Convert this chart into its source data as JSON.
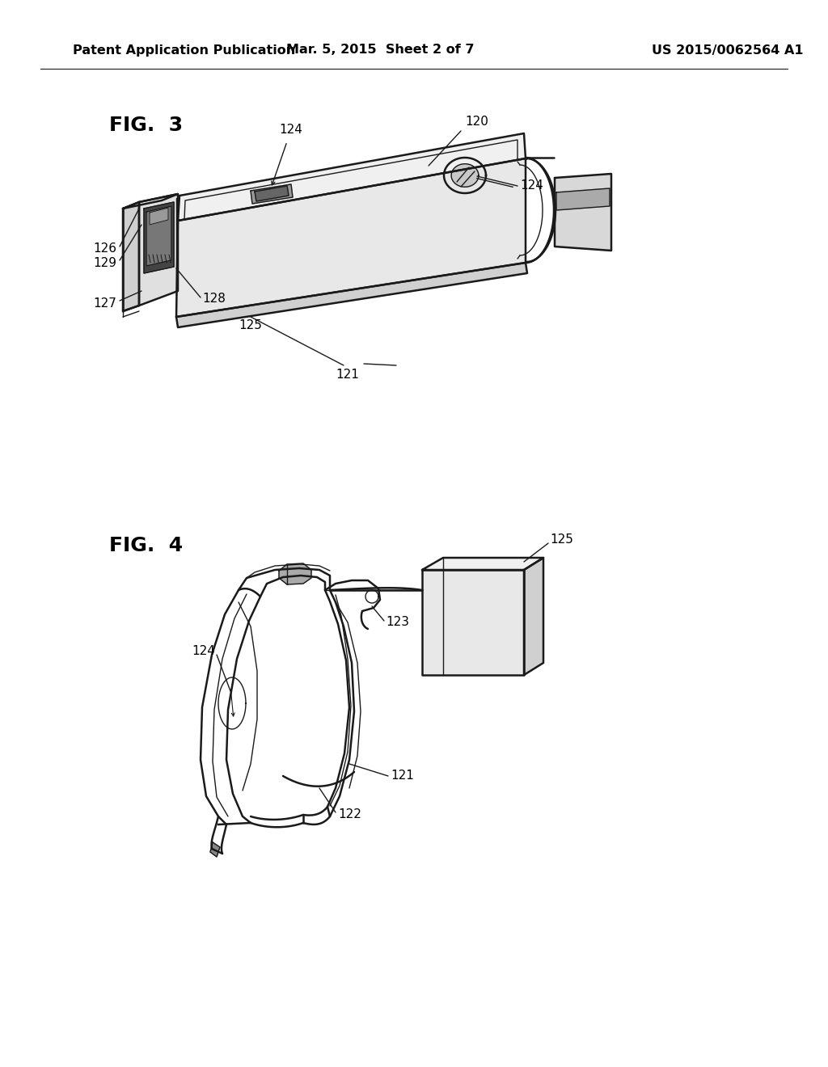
{
  "background_color": "#ffffff",
  "header": {
    "left_text": "Patent Application Publication",
    "center_text": "Mar. 5, 2015  Sheet 2 of 7",
    "right_text": "US 2015/0062564 A1",
    "font_size": 11.5
  },
  "fig3_label": "FIG.  3",
  "fig4_label": "FIG.  4",
  "annotation_fontsize": 11,
  "label_fontsize": 18
}
